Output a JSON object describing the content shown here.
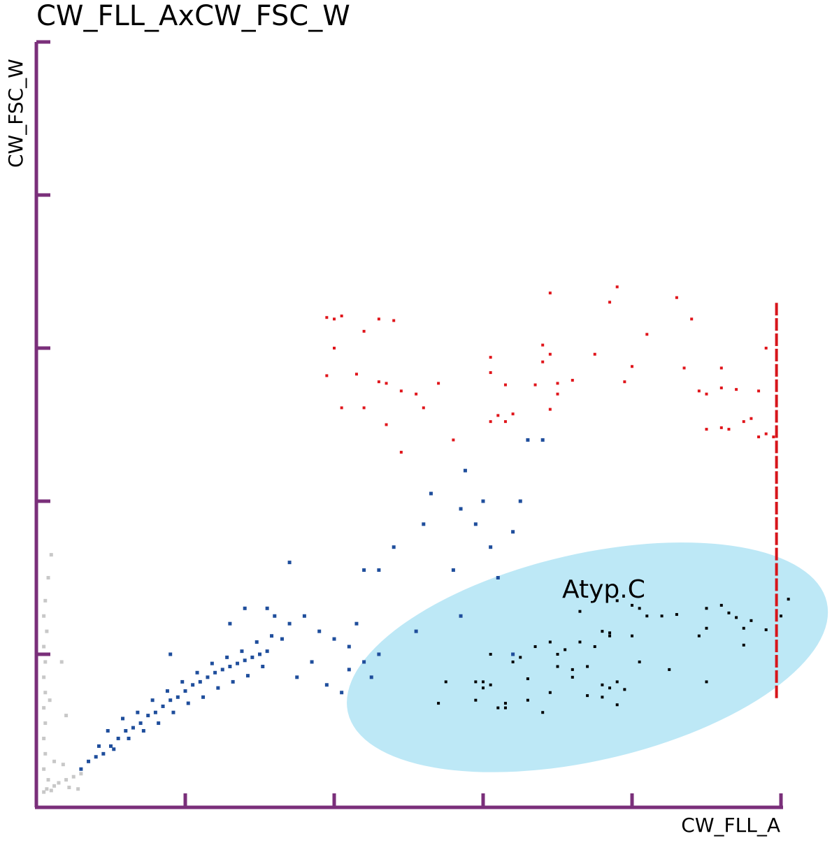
{
  "chart_data": {
    "type": "scatter",
    "title": "CW_FLL_AxCW_FSC_W",
    "xlabel": "CW_FLL_A",
    "ylabel": "CW_FSC_W",
    "xlim": [
      0,
      5
    ],
    "ylim": [
      0,
      5
    ],
    "grid": false,
    "colors": {
      "axis": "#7a2f7a",
      "debris": "#c8c8c8",
      "blue_population": "#1f4e9c",
      "red_population": "#e0151b",
      "black_population": "#000000",
      "gate_fill": "#bde8f6",
      "saturation_line": "#d7151b"
    },
    "gate": {
      "name": "Atyp.C",
      "shape": "ellipse",
      "center": [
        3.7,
        0.98
      ],
      "radii": [
        3.3,
        1.35
      ],
      "rotation_deg": -13
    },
    "series": [
      {
        "key": "debris",
        "color": "#c8c8c8",
        "points": [
          [
            0.05,
            0.1
          ],
          [
            0.07,
            0.12
          ],
          [
            0.1,
            0.11
          ],
          [
            0.12,
            0.14
          ],
          [
            0.08,
            0.18
          ],
          [
            0.15,
            0.16
          ],
          [
            0.2,
            0.18
          ],
          [
            0.25,
            0.2
          ],
          [
            0.3,
            0.22
          ],
          [
            0.05,
            0.25
          ],
          [
            0.06,
            0.35
          ],
          [
            0.05,
            0.45
          ],
          [
            0.06,
            0.55
          ],
          [
            0.05,
            0.65
          ],
          [
            0.06,
            0.75
          ],
          [
            0.05,
            0.85
          ],
          [
            0.06,
            0.95
          ],
          [
            0.05,
            1.05
          ],
          [
            0.07,
            1.15
          ],
          [
            0.05,
            1.25
          ],
          [
            0.06,
            1.35
          ],
          [
            0.08,
            1.5
          ],
          [
            0.1,
            1.65
          ],
          [
            0.12,
            0.3
          ],
          [
            0.18,
            0.28
          ],
          [
            0.22,
            0.13
          ],
          [
            0.28,
            0.12
          ],
          [
            0.09,
            0.7
          ],
          [
            0.2,
            0.6
          ],
          [
            0.17,
            0.95
          ]
        ]
      },
      {
        "key": "blue",
        "color": "#1f4e9c",
        "points": [
          [
            0.3,
            0.25
          ],
          [
            0.35,
            0.3
          ],
          [
            0.4,
            0.33
          ],
          [
            0.45,
            0.35
          ],
          [
            0.5,
            0.4
          ],
          [
            0.55,
            0.45
          ],
          [
            0.6,
            0.5
          ],
          [
            0.65,
            0.52
          ],
          [
            0.7,
            0.55
          ],
          [
            0.75,
            0.6
          ],
          [
            0.8,
            0.62
          ],
          [
            0.85,
            0.66
          ],
          [
            0.9,
            0.7
          ],
          [
            0.95,
            0.72
          ],
          [
            1.0,
            0.76
          ],
          [
            1.05,
            0.8
          ],
          [
            1.1,
            0.82
          ],
          [
            1.15,
            0.85
          ],
          [
            1.2,
            0.88
          ],
          [
            1.25,
            0.9
          ],
          [
            1.3,
            0.92
          ],
          [
            1.35,
            0.94
          ],
          [
            1.4,
            0.96
          ],
          [
            1.45,
            0.98
          ],
          [
            1.5,
            1.0
          ],
          [
            1.55,
            1.02
          ],
          [
            0.42,
            0.4
          ],
          [
            0.52,
            0.38
          ],
          [
            0.62,
            0.45
          ],
          [
            0.72,
            0.5
          ],
          [
            0.82,
            0.55
          ],
          [
            0.92,
            0.62
          ],
          [
            1.02,
            0.68
          ],
          [
            1.12,
            0.72
          ],
          [
            1.22,
            0.78
          ],
          [
            1.32,
            0.82
          ],
          [
            1.42,
            0.86
          ],
          [
            1.52,
            0.92
          ],
          [
            0.48,
            0.5
          ],
          [
            0.58,
            0.58
          ],
          [
            0.68,
            0.62
          ],
          [
            0.78,
            0.7
          ],
          [
            0.88,
            0.76
          ],
          [
            0.98,
            0.82
          ],
          [
            1.08,
            0.88
          ],
          [
            1.18,
            0.94
          ],
          [
            1.28,
            0.98
          ],
          [
            1.38,
            1.02
          ],
          [
            1.48,
            1.08
          ],
          [
            1.58,
            1.12
          ],
          [
            0.9,
            1.0
          ],
          [
            1.3,
            1.2
          ],
          [
            1.4,
            1.3
          ],
          [
            1.6,
            1.25
          ],
          [
            1.7,
            1.2
          ],
          [
            1.9,
            1.15
          ],
          [
            2.0,
            1.1
          ],
          [
            1.85,
            0.95
          ],
          [
            1.75,
            0.85
          ],
          [
            1.95,
            0.8
          ],
          [
            2.1,
            0.9
          ],
          [
            2.1,
            1.05
          ],
          [
            2.15,
            1.2
          ],
          [
            2.05,
            0.75
          ],
          [
            2.2,
            0.95
          ],
          [
            1.8,
            1.25
          ],
          [
            1.65,
            1.1
          ],
          [
            1.55,
            1.3
          ],
          [
            2.3,
            1.0
          ],
          [
            2.25,
            0.85
          ],
          [
            2.3,
            1.55
          ],
          [
            2.4,
            1.7
          ],
          [
            2.55,
            1.15
          ],
          [
            2.6,
            1.85
          ],
          [
            2.65,
            2.05
          ],
          [
            2.85,
            1.95
          ],
          [
            2.8,
            1.55
          ],
          [
            2.95,
            1.85
          ],
          [
            3.0,
            2.0
          ],
          [
            3.2,
            1.8
          ],
          [
            2.88,
            2.2
          ],
          [
            3.05,
            1.7
          ],
          [
            3.25,
            2.0
          ],
          [
            3.4,
            2.4
          ],
          [
            3.3,
            2.4
          ],
          [
            2.85,
            1.25
          ],
          [
            3.2,
            1.0
          ],
          [
            3.1,
            1.5
          ],
          [
            2.2,
            1.55
          ],
          [
            1.7,
            1.6
          ]
        ]
      },
      {
        "key": "red",
        "color": "#e0151b",
        "points": [
          [
            1.95,
            3.2
          ],
          [
            2.0,
            3.19
          ],
          [
            2.05,
            3.21
          ],
          [
            2.3,
            3.19
          ],
          [
            2.4,
            3.18
          ],
          [
            2.2,
            3.11
          ],
          [
            2.0,
            3.0
          ],
          [
            1.95,
            2.82
          ],
          [
            2.15,
            2.83
          ],
          [
            2.3,
            2.78
          ],
          [
            2.35,
            2.77
          ],
          [
            2.45,
            2.72
          ],
          [
            2.55,
            2.7
          ],
          [
            2.6,
            2.61
          ],
          [
            2.2,
            2.61
          ],
          [
            2.05,
            2.61
          ],
          [
            2.35,
            2.5
          ],
          [
            2.45,
            2.32
          ],
          [
            2.7,
            2.77
          ],
          [
            2.8,
            2.4
          ],
          [
            3.05,
            2.94
          ],
          [
            3.05,
            2.84
          ],
          [
            3.15,
            2.76
          ],
          [
            3.2,
            2.57
          ],
          [
            3.15,
            2.52
          ],
          [
            3.1,
            2.56
          ],
          [
            3.05,
            2.52
          ],
          [
            3.4,
            3.02
          ],
          [
            3.45,
            2.96
          ],
          [
            3.4,
            2.91
          ],
          [
            3.35,
            2.76
          ],
          [
            3.5,
            2.77
          ],
          [
            3.45,
            2.6
          ],
          [
            3.5,
            2.7
          ],
          [
            3.45,
            3.36
          ],
          [
            3.6,
            2.79
          ],
          [
            3.75,
            2.96
          ],
          [
            3.85,
            3.3
          ],
          [
            3.9,
            3.4
          ],
          [
            3.95,
            2.78
          ],
          [
            4.1,
            3.09
          ],
          [
            4.0,
            2.88
          ],
          [
            4.3,
            3.33
          ],
          [
            4.4,
            3.19
          ],
          [
            4.35,
            2.87
          ],
          [
            4.45,
            2.72
          ],
          [
            4.5,
            2.7
          ],
          [
            4.6,
            2.87
          ],
          [
            4.6,
            2.74
          ],
          [
            4.7,
            2.73
          ],
          [
            4.5,
            2.47
          ],
          [
            4.6,
            2.48
          ],
          [
            4.65,
            2.47
          ],
          [
            4.75,
            2.52
          ],
          [
            4.8,
            2.54
          ],
          [
            4.85,
            2.42
          ],
          [
            4.9,
            2.44
          ],
          [
            4.95,
            2.42
          ],
          [
            4.85,
            2.72
          ],
          [
            4.9,
            3.0
          ]
        ]
      },
      {
        "key": "black",
        "color": "#000000",
        "points": [
          [
            3.65,
            1.28
          ],
          [
            3.9,
            1.35
          ],
          [
            4.0,
            1.32
          ],
          [
            4.05,
            1.3
          ],
          [
            4.1,
            1.25
          ],
          [
            4.2,
            1.25
          ],
          [
            4.3,
            1.26
          ],
          [
            4.5,
            1.3
          ],
          [
            4.6,
            1.32
          ],
          [
            4.65,
            1.27
          ],
          [
            4.7,
            1.24
          ],
          [
            4.8,
            1.22
          ],
          [
            5.0,
            1.25
          ],
          [
            5.05,
            1.36
          ],
          [
            4.9,
            1.16
          ],
          [
            4.75,
            1.17
          ],
          [
            4.75,
            1.06
          ],
          [
            4.5,
            1.17
          ],
          [
            4.45,
            1.12
          ],
          [
            3.8,
            1.15
          ],
          [
            3.85,
            1.14
          ],
          [
            3.85,
            1.12
          ],
          [
            4.0,
            1.12
          ],
          [
            3.65,
            1.08
          ],
          [
            3.75,
            1.05
          ],
          [
            3.55,
            1.03
          ],
          [
            3.45,
            1.08
          ],
          [
            3.35,
            1.05
          ],
          [
            3.25,
            0.98
          ],
          [
            3.5,
            1.0
          ],
          [
            3.5,
            0.92
          ],
          [
            3.2,
            0.95
          ],
          [
            3.05,
            1.0
          ],
          [
            3.3,
            0.84
          ],
          [
            3.6,
            0.9
          ],
          [
            3.7,
            0.92
          ],
          [
            4.05,
            0.95
          ],
          [
            4.25,
            0.9
          ],
          [
            4.5,
            0.82
          ],
          [
            3.6,
            0.85
          ],
          [
            3.0,
            0.82
          ],
          [
            2.95,
            0.7
          ],
          [
            2.7,
            0.68
          ],
          [
            2.95,
            0.82
          ],
          [
            3.15,
            0.65
          ],
          [
            3.0,
            0.78
          ],
          [
            3.05,
            0.8
          ],
          [
            3.15,
            0.68
          ],
          [
            3.3,
            0.7
          ],
          [
            3.4,
            0.62
          ],
          [
            3.45,
            0.75
          ],
          [
            3.7,
            0.73
          ],
          [
            3.8,
            0.8
          ],
          [
            3.9,
            0.82
          ],
          [
            3.85,
            0.78
          ],
          [
            3.8,
            0.72
          ],
          [
            3.9,
            0.67
          ],
          [
            3.95,
            0.77
          ],
          [
            2.75,
            0.82
          ],
          [
            3.1,
            0.65
          ]
        ]
      },
      {
        "key": "saturation",
        "color": "#d7151b",
        "points": [
          [
            4.97,
            3.25
          ],
          [
            4.97,
            3.15
          ],
          [
            4.97,
            3.05
          ],
          [
            4.97,
            2.95
          ],
          [
            4.97,
            2.85
          ],
          [
            4.97,
            2.75
          ],
          [
            4.97,
            2.65
          ],
          [
            4.97,
            2.55
          ],
          [
            4.97,
            2.45
          ],
          [
            4.97,
            2.35
          ],
          [
            4.97,
            2.25
          ],
          [
            4.97,
            2.15
          ],
          [
            4.97,
            2.05
          ],
          [
            4.97,
            1.95
          ],
          [
            4.97,
            1.85
          ],
          [
            4.97,
            1.75
          ],
          [
            4.97,
            1.65
          ],
          [
            4.97,
            1.55
          ],
          [
            4.97,
            1.45
          ],
          [
            4.97,
            1.35
          ],
          [
            4.97,
            1.25
          ],
          [
            4.97,
            1.15
          ],
          [
            4.97,
            1.05
          ],
          [
            4.97,
            0.95
          ],
          [
            4.97,
            0.85
          ],
          [
            4.97,
            0.75
          ]
        ]
      }
    ]
  }
}
